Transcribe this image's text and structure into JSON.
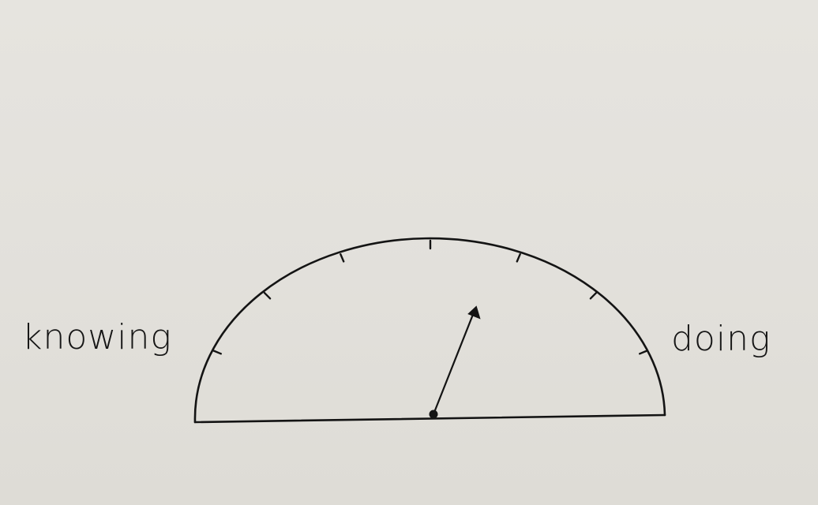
{
  "gauge": {
    "left_label": "knowing",
    "right_label": "doing",
    "needle_fraction": 0.62,
    "tick_count": 7,
    "ink_color": "#141414",
    "paper_color": "#e4e2dd"
  }
}
